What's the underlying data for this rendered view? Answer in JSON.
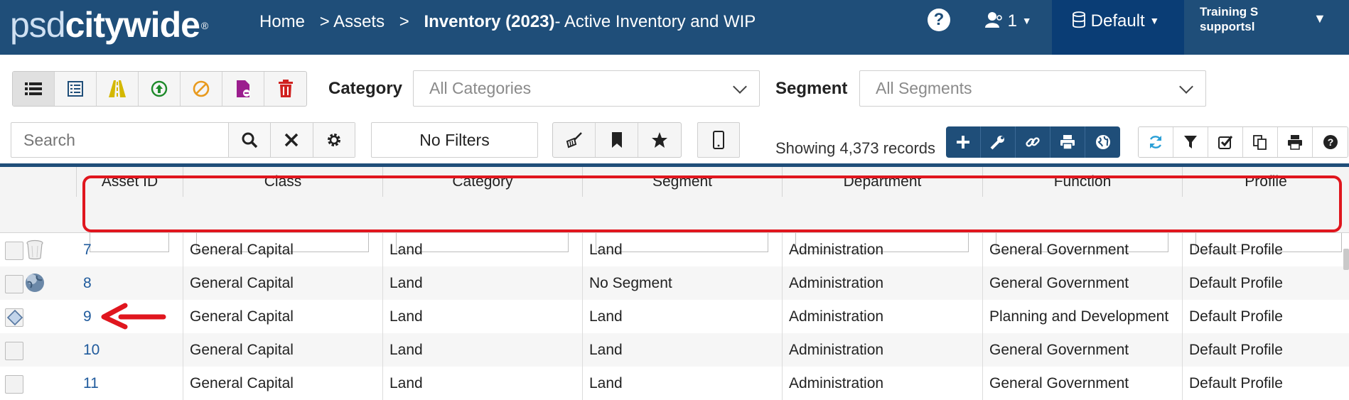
{
  "nav": {
    "logo_light": "psd",
    "logo_bold": "citywide",
    "logo_reg": "®",
    "breadcrumbs": [
      "Home",
      "> Assets"
    ],
    "current_prefix": "> ",
    "current_bold": "Inventory (2023)",
    "current_rest": "- Active Inventory and WIP",
    "help_label": "?",
    "user_count": "1",
    "database": "Default",
    "account_line1": "Training S",
    "account_line2": "supportsl"
  },
  "filters": {
    "category_label": "Category",
    "category_value": "All Categories",
    "segment_label": "Segment",
    "segment_value": "All Segments",
    "search_placeholder": "Search",
    "no_filters": "No Filters",
    "showing": "Showing 4,373 records"
  },
  "colors": {
    "nav_bg": "#1f4e79",
    "nav_dark": "#0a3d75",
    "link": "#1f5a9c",
    "highlight": "#e0161e"
  },
  "columns": [
    "Asset ID",
    "Class",
    "Category",
    "Segment",
    "Department",
    "Function",
    "Profile"
  ],
  "rows": [
    {
      "icon": "trash-can-icon",
      "id": "7",
      "class": "General Capital",
      "category": "Land",
      "segment": "Land",
      "department": "Administration",
      "function": "General Government",
      "profile": "Default Profile"
    },
    {
      "icon": "globe-icon",
      "id": "8",
      "class": "General Capital",
      "category": "Land",
      "segment": "No Segment",
      "department": "Administration",
      "function": "General Government",
      "profile": "Default Profile"
    },
    {
      "icon": "diamond-icon",
      "id": "9",
      "class": "General Capital",
      "category": "Land",
      "segment": "Land",
      "department": "Administration",
      "function": "Planning and Development",
      "profile": "Default Profile"
    },
    {
      "icon": "",
      "id": "10",
      "class": "General Capital",
      "category": "Land",
      "segment": "Land",
      "department": "Administration",
      "function": "General Government",
      "profile": "Default Profile"
    },
    {
      "icon": "",
      "id": "11",
      "class": "General Capital",
      "category": "Land",
      "segment": "Land",
      "department": "Administration",
      "function": "General Government",
      "profile": "Default Profile"
    }
  ]
}
